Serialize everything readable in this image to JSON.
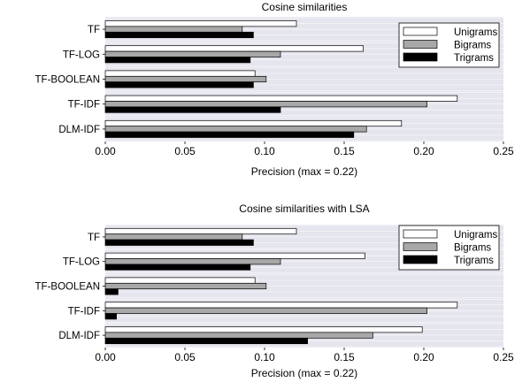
{
  "chart_data": [
    {
      "type": "bar",
      "orientation": "horizontal",
      "title": "Cosine similarities",
      "xlabel": "Precision (max = 0.22)",
      "ylabel": "",
      "xlim": [
        0,
        0.25
      ],
      "xticks": [
        "0.00",
        "0.05",
        "0.10",
        "0.15",
        "0.20",
        "0.25"
      ],
      "categories": [
        "TF",
        "TF-LOG",
        "TF-BOOLEAN",
        "TF-IDF",
        "DLM-IDF"
      ],
      "series": [
        {
          "name": "Unigrams",
          "color": "#ffffff",
          "values": [
            0.12,
            0.162,
            0.094,
            0.221,
            0.186
          ]
        },
        {
          "name": "Bigrams",
          "color": "#a8a8a8",
          "values": [
            0.086,
            0.11,
            0.101,
            0.202,
            0.164
          ]
        },
        {
          "name": "Trigrams",
          "color": "#000000",
          "values": [
            0.093,
            0.091,
            0.093,
            0.11,
            0.156
          ]
        }
      ],
      "grid": true,
      "legend_position": "top-right",
      "plot_background": "#e5e5ee"
    },
    {
      "type": "bar",
      "orientation": "horizontal",
      "title": "Cosine similarities with LSA",
      "xlabel": "Precision (max = 0.22)",
      "ylabel": "",
      "xlim": [
        0,
        0.25
      ],
      "xticks": [
        "0.00",
        "0.05",
        "0.10",
        "0.15",
        "0.20",
        "0.25"
      ],
      "categories": [
        "TF",
        "TF-LOG",
        "TF-BOOLEAN",
        "TF-IDF",
        "DLM-IDF"
      ],
      "series": [
        {
          "name": "Unigrams",
          "color": "#ffffff",
          "values": [
            0.12,
            0.163,
            0.094,
            0.221,
            0.199
          ]
        },
        {
          "name": "Bigrams",
          "color": "#a8a8a8",
          "values": [
            0.086,
            0.11,
            0.101,
            0.202,
            0.168
          ]
        },
        {
          "name": "Trigrams",
          "color": "#000000",
          "values": [
            0.093,
            0.091,
            0.008,
            0.007,
            0.127
          ]
        }
      ],
      "grid": true,
      "legend_position": "top-right",
      "plot_background": "#e5e5ee"
    }
  ]
}
